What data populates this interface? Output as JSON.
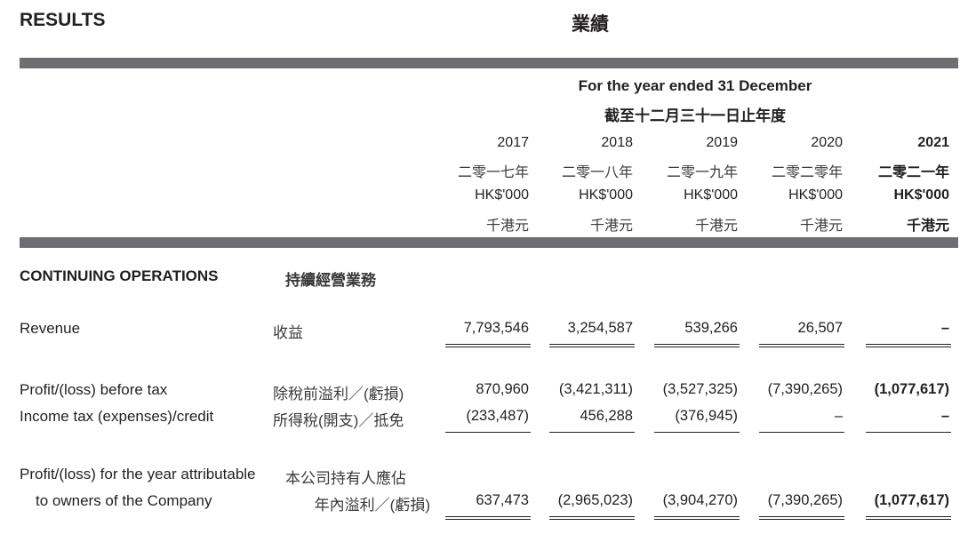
{
  "header": {
    "title_en": "RESULTS",
    "title_cn": "業績",
    "period_en": "For the year ended 31 December",
    "period_cn": "截至十二月三十一日止年度"
  },
  "columns": [
    {
      "year": "2017",
      "year_cn": "二零一七年",
      "unit": "HK$'000",
      "unit_cn": "千港元",
      "bold": false
    },
    {
      "year": "2018",
      "year_cn": "二零一八年",
      "unit": "HK$'000",
      "unit_cn": "千港元",
      "bold": false
    },
    {
      "year": "2019",
      "year_cn": "二零一九年",
      "unit": "HK$'000",
      "unit_cn": "千港元",
      "bold": false
    },
    {
      "year": "2020",
      "year_cn": "二零二零年",
      "unit": "HK$'000",
      "unit_cn": "千港元",
      "bold": false
    },
    {
      "year": "2021",
      "year_cn": "二零二一年",
      "unit": "HK$'000",
      "unit_cn": "千港元",
      "bold": true
    }
  ],
  "section": {
    "label_en": "CONTINUING OPERATIONS",
    "label_cn": "持續經營業務"
  },
  "rows": [
    {
      "label_en": "Revenue",
      "label_cn": "收益",
      "values": [
        "7,793,546",
        "3,254,587",
        "539,266",
        "26,507",
        "–"
      ],
      "underline": "double"
    },
    {
      "label_en": "Profit/(loss) before tax",
      "label_cn": "除稅前溢利／(虧損)",
      "values": [
        "870,960",
        "(3,421,311)",
        "(3,527,325)",
        "(7,390,265)",
        "(1,077,617)"
      ],
      "underline": "none"
    },
    {
      "label_en": "Income tax (expenses)/credit",
      "label_cn": "所得稅(開支)／抵免",
      "values": [
        "(233,487)",
        "456,288",
        "(376,945)",
        "–",
        "–"
      ],
      "underline": "single"
    },
    {
      "label_en": "Profit/(loss) for the year attributable",
      "label_en_2": "to owners of the Company",
      "label_cn": "本公司持有人應佔",
      "label_cn_2": "年內溢利／(虧損)",
      "values": [
        "637,473",
        "(2,965,023)",
        "(3,904,270)",
        "(7,390,265)",
        "(1,077,617)"
      ],
      "underline": "double"
    }
  ],
  "colors": {
    "bar": "#6d6e71",
    "text": "#231f20"
  }
}
